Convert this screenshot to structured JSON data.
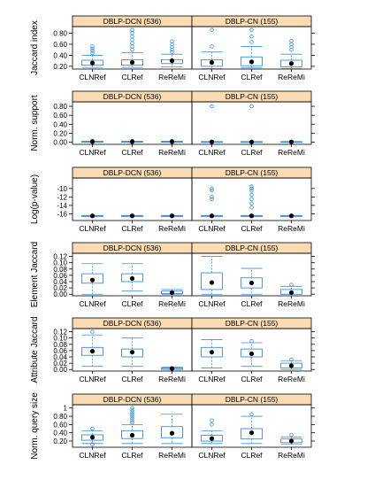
{
  "figure": {
    "colors": {
      "strip": "#fadcb4",
      "box": "#3c8ee0",
      "median": "#000000",
      "frame": "#000000"
    }
  },
  "chart_data": [
    {
      "type": "boxplot",
      "ylabel": "Jaccard index",
      "ylim": [
        0.15,
        0.92
      ],
      "yticks": [
        0.2,
        0.4,
        0.6,
        0.8
      ],
      "panels": [
        {
          "strip": "DBLP-DCN (536)",
          "categories": [
            "CLNRef",
            "CLRef",
            "ReReMi"
          ],
          "boxes": [
            {
              "q1": 0.22,
              "median": 0.26,
              "q3": 0.31,
              "wlo": 0.18,
              "whi": 0.4,
              "outliers": [
                0.44,
                0.48,
                0.52,
                0.56
              ]
            },
            {
              "q1": 0.22,
              "median": 0.27,
              "q3": 0.32,
              "wlo": 0.18,
              "whi": 0.45,
              "outliers": [
                0.5,
                0.56,
                0.62,
                0.68,
                0.74,
                0.8,
                0.86
              ]
            },
            {
              "q1": 0.25,
              "median": 0.3,
              "q3": 0.32,
              "wlo": 0.19,
              "whi": 0.42,
              "outliers": [
                0.46,
                0.5,
                0.55,
                0.6,
                0.65
              ]
            }
          ]
        },
        {
          "strip": "DBLP-CN (155)",
          "categories": [
            "CLNRef",
            "CLRef",
            "ReReMi"
          ],
          "boxes": [
            {
              "q1": 0.2,
              "median": 0.27,
              "q3": 0.32,
              "wlo": 0.16,
              "whi": 0.46,
              "outliers": [
                0.56,
                0.86
              ]
            },
            {
              "q1": 0.21,
              "median": 0.28,
              "q3": 0.37,
              "wlo": 0.17,
              "whi": 0.56,
              "outliers": [
                0.64,
                0.74,
                0.86
              ]
            },
            {
              "q1": 0.19,
              "median": 0.25,
              "q3": 0.31,
              "wlo": 0.16,
              "whi": 0.42,
              "outliers": [
                0.5,
                0.55,
                0.6,
                0.66
              ]
            }
          ]
        }
      ]
    },
    {
      "type": "boxplot",
      "ylabel": "Norm. support",
      "ylim": [
        -0.05,
        0.9
      ],
      "yticks": [
        0.0,
        0.2,
        0.4,
        0.6,
        0.8
      ],
      "panels": [
        {
          "strip": "DBLP-DCN (536)",
          "categories": [
            "CLNRef",
            "CLRef",
            "ReReMi"
          ],
          "boxes": [
            {
              "q1": 0.005,
              "median": 0.01,
              "q3": 0.015,
              "wlo": 0.0,
              "whi": 0.02,
              "outliers": [
                0.03
              ]
            },
            {
              "q1": 0.005,
              "median": 0.01,
              "q3": 0.015,
              "wlo": 0.0,
              "whi": 0.02,
              "outliers": [
                0.03
              ]
            },
            {
              "q1": 0.005,
              "median": 0.01,
              "q3": 0.015,
              "wlo": 0.0,
              "whi": 0.02,
              "outliers": [
                0.03
              ]
            }
          ]
        },
        {
          "strip": "DBLP-CN (155)",
          "categories": [
            "CLNRef",
            "CLRef",
            "ReReMi"
          ],
          "boxes": [
            {
              "q1": 0.0,
              "median": 0.005,
              "q3": 0.01,
              "wlo": 0.0,
              "whi": 0.015,
              "outliers": [
                0.8
              ]
            },
            {
              "q1": 0.0,
              "median": 0.005,
              "q3": 0.01,
              "wlo": 0.0,
              "whi": 0.015,
              "outliers": [
                0.8
              ]
            },
            {
              "q1": 0.0,
              "median": 0.005,
              "q3": 0.01,
              "wlo": 0.0,
              "whi": 0.015,
              "outliers": []
            }
          ]
        }
      ]
    },
    {
      "type": "boxplot",
      "ylabel": "Log(p-value)",
      "ylim": [
        -17.6,
        -7.5
      ],
      "yticks": [
        -16,
        -14,
        -12,
        -10
      ],
      "panels": [
        {
          "strip": "DBLP-DCN (536)",
          "categories": [
            "CLNRef",
            "CLRef",
            "ReReMi"
          ],
          "boxes": [
            {
              "q1": -16.55,
              "median": -16.5,
              "q3": -16.45,
              "wlo": -16.6,
              "whi": -16.4,
              "outliers": []
            },
            {
              "q1": -16.55,
              "median": -16.5,
              "q3": -16.45,
              "wlo": -16.6,
              "whi": -16.4,
              "outliers": []
            },
            {
              "q1": -16.55,
              "median": -16.5,
              "q3": -16.45,
              "wlo": -16.6,
              "whi": -16.4,
              "outliers": []
            }
          ]
        },
        {
          "strip": "DBLP-CN (155)",
          "categories": [
            "CLNRef",
            "CLRef",
            "ReReMi"
          ],
          "boxes": [
            {
              "q1": -16.55,
              "median": -16.5,
              "q3": -16.45,
              "wlo": -16.6,
              "whi": -16.4,
              "outliers": [
                -10.0,
                -10.4,
                -12.0,
                -12.5
              ]
            },
            {
              "q1": -16.55,
              "median": -16.5,
              "q3": -16.45,
              "wlo": -16.6,
              "whi": -16.4,
              "outliers": [
                -9.5,
                -10.0,
                -10.5,
                -11.5,
                -12.5,
                -13.5,
                -14.5
              ]
            },
            {
              "q1": -16.55,
              "median": -16.5,
              "q3": -16.45,
              "wlo": -16.6,
              "whi": -16.4,
              "outliers": []
            }
          ]
        }
      ]
    },
    {
      "type": "boxplot",
      "ylabel": "Element Jaccard",
      "ylim": [
        -0.005,
        0.13
      ],
      "yticks": [
        0.0,
        0.02,
        0.04,
        0.06,
        0.08,
        0.1,
        0.12
      ],
      "panels": [
        {
          "strip": "DBLP-DCN (536)",
          "categories": [
            "CLNRef",
            "CLRef",
            "ReReMi"
          ],
          "boxes": [
            {
              "q1": 0.035,
              "median": 0.045,
              "q3": 0.065,
              "wlo": 0.0,
              "whi": 0.097,
              "outliers": []
            },
            {
              "q1": 0.04,
              "median": 0.05,
              "q3": 0.065,
              "wlo": 0.01,
              "whi": 0.097,
              "outliers": []
            },
            {
              "q1": 0.002,
              "median": 0.005,
              "q3": 0.01,
              "wlo": 0.0,
              "whi": 0.015,
              "outliers": []
            }
          ]
        },
        {
          "strip": "DBLP-CN (155)",
          "categories": [
            "CLNRef",
            "CLRef",
            "ReReMi"
          ],
          "boxes": [
            {
              "q1": 0.015,
              "median": 0.037,
              "q3": 0.068,
              "wlo": 0.0,
              "whi": 0.12,
              "outliers": []
            },
            {
              "q1": 0.02,
              "median": 0.036,
              "q3": 0.052,
              "wlo": 0.0,
              "whi": 0.082,
              "outliers": []
            },
            {
              "q1": 0.0,
              "median": 0.005,
              "q3": 0.015,
              "wlo": 0.0,
              "whi": 0.025,
              "outliers": [
                0.03
              ]
            }
          ]
        }
      ]
    },
    {
      "type": "boxplot",
      "ylabel": "Attribute Jaccard",
      "ylim": [
        -0.005,
        0.13
      ],
      "yticks": [
        0.0,
        0.02,
        0.04,
        0.06,
        0.08,
        0.1,
        0.12
      ],
      "panels": [
        {
          "strip": "DBLP-DCN (536)",
          "categories": [
            "CLNRef",
            "CLRef",
            "ReReMi"
          ],
          "boxes": [
            {
              "q1": 0.045,
              "median": 0.058,
              "q3": 0.07,
              "wlo": 0.01,
              "whi": 0.11,
              "outliers": [
                0.12
              ]
            },
            {
              "q1": 0.04,
              "median": 0.055,
              "q3": 0.065,
              "wlo": 0.01,
              "whi": 0.1,
              "outliers": []
            },
            {
              "q1": 0.001,
              "median": 0.003,
              "q3": 0.005,
              "wlo": 0.0,
              "whi": 0.008,
              "outliers": []
            }
          ]
        },
        {
          "strip": "DBLP-CN (155)",
          "categories": [
            "CLNRef",
            "CLRef",
            "ReReMi"
          ],
          "boxes": [
            {
              "q1": 0.04,
              "median": 0.055,
              "q3": 0.07,
              "wlo": 0.005,
              "whi": 0.095,
              "outliers": []
            },
            {
              "q1": 0.04,
              "median": 0.05,
              "q3": 0.065,
              "wlo": 0.01,
              "whi": 0.085,
              "outliers": [
                0.09
              ]
            },
            {
              "q1": 0.005,
              "median": 0.012,
              "q3": 0.02,
              "wlo": 0.0,
              "whi": 0.028,
              "outliers": [
                0.032
              ]
            }
          ]
        }
      ]
    },
    {
      "type": "boxplot",
      "ylabel": "Norm. query size",
      "ylim": [
        0.05,
        1.08
      ],
      "yticks": [
        0.2,
        0.4,
        0.6,
        0.8,
        1.0
      ],
      "panels": [
        {
          "strip": "DBLP-DCN (536)",
          "categories": [
            "CLNRef",
            "CLRef",
            "ReReMi"
          ],
          "boxes": [
            {
              "q1": 0.22,
              "median": 0.29,
              "q3": 0.35,
              "wlo": 0.14,
              "whi": 0.45,
              "outliers": [
                0.5,
                0.12
              ]
            },
            {
              "q1": 0.26,
              "median": 0.34,
              "q3": 0.45,
              "wlo": 0.14,
              "whi": 0.6,
              "outliers": [
                0.65,
                0.7,
                0.75,
                0.8,
                0.85,
                0.9,
                0.95,
                1.0
              ]
            },
            {
              "q1": 0.28,
              "median": 0.39,
              "q3": 0.55,
              "wlo": 0.14,
              "whi": 0.85,
              "outliers": []
            }
          ]
        },
        {
          "strip": "DBLP-CN (155)",
          "categories": [
            "CLNRef",
            "CLRef",
            "ReReMi"
          ],
          "boxes": [
            {
              "q1": 0.2,
              "median": 0.26,
              "q3": 0.34,
              "wlo": 0.14,
              "whi": 0.45,
              "outliers": [
                0.6,
                0.7
              ]
            },
            {
              "q1": 0.25,
              "median": 0.4,
              "q3": 0.5,
              "wlo": 0.14,
              "whi": 0.8,
              "outliers": [
                0.85
              ]
            },
            {
              "q1": 0.16,
              "median": 0.2,
              "q3": 0.25,
              "wlo": 0.12,
              "whi": 0.3,
              "outliers": [
                0.35
              ]
            }
          ]
        }
      ]
    }
  ]
}
